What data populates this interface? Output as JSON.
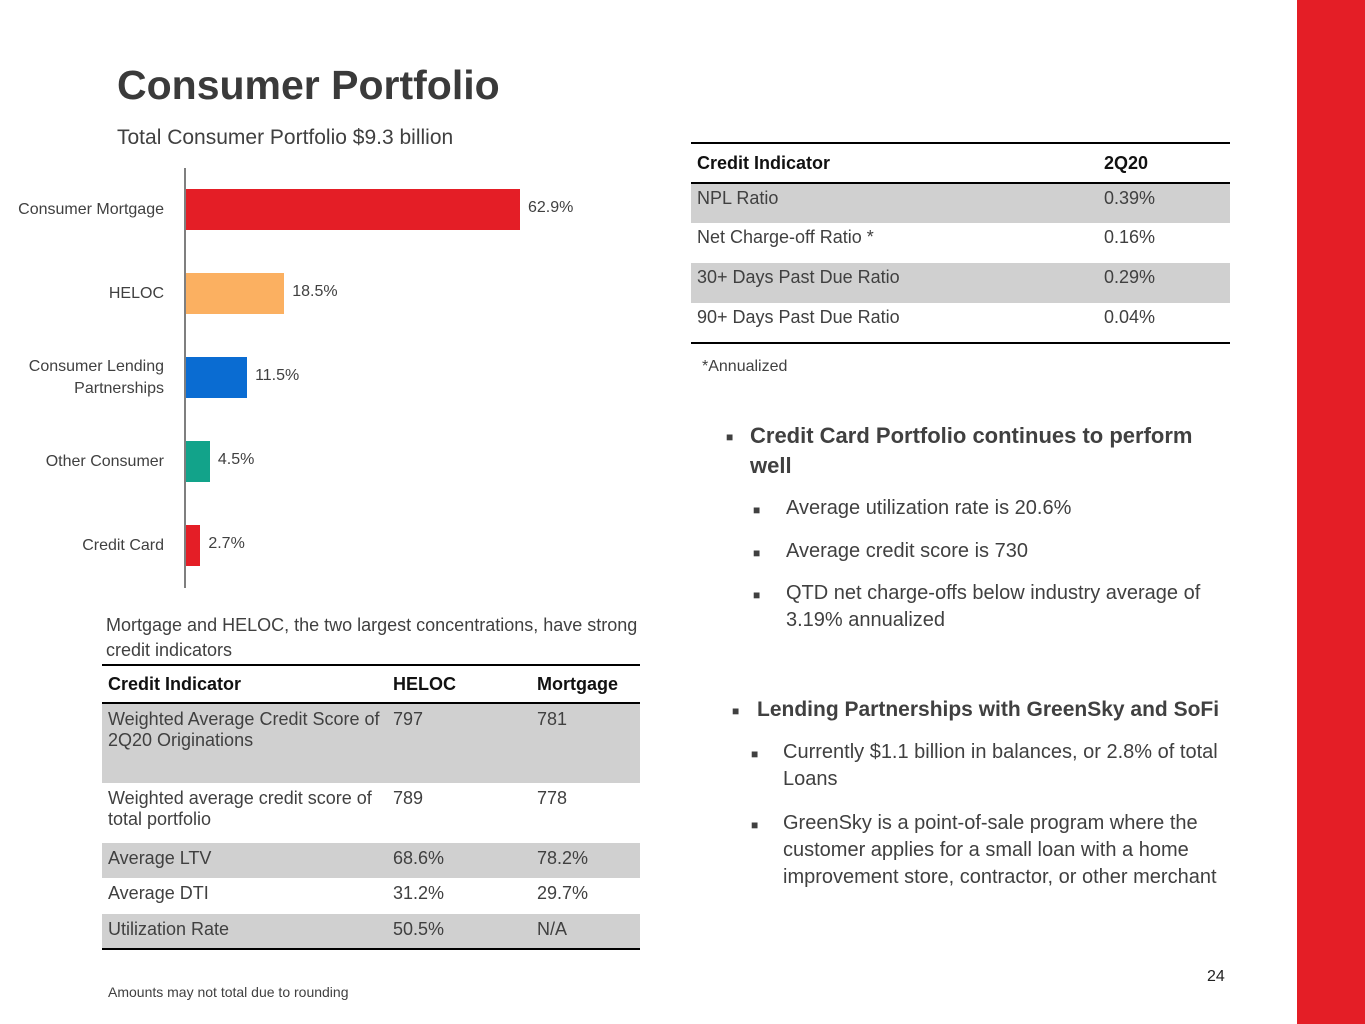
{
  "slide": {
    "title": "Consumer Portfolio",
    "subtitle": "Total Consumer Portfolio $9.3 billion",
    "accent_color": "#e41e26",
    "page_number": "24",
    "footnote": "Amounts may not total due to rounding"
  },
  "chart_data": {
    "type": "bar",
    "orientation": "horizontal",
    "categories": [
      "Consumer Mortgage",
      "HELOC",
      "Consumer Lending Partnerships",
      "Other Consumer",
      "Credit Card"
    ],
    "category_lines": [
      [
        "Consumer Mortgage"
      ],
      [
        "HELOC"
      ],
      [
        "Consumer Lending",
        "Partnerships"
      ],
      [
        "Other Consumer"
      ],
      [
        "Credit Card"
      ]
    ],
    "values": [
      62.9,
      18.5,
      11.5,
      4.5,
      2.7
    ],
    "value_labels": [
      "62.9%",
      "18.5%",
      "11.5%",
      "4.5%",
      "2.7%"
    ],
    "colors": [
      "#e41e26",
      "#fbb061",
      "#0a6cd2",
      "#12a38a",
      "#e41e26"
    ],
    "xlim": [
      0,
      65
    ],
    "grid": false,
    "legend": "none"
  },
  "credit_table": {
    "headers": [
      "Credit Indicator",
      "2Q20"
    ],
    "rows": [
      [
        "NPL Ratio",
        "0.39%"
      ],
      [
        "Net Charge-off Ratio *",
        "0.16%"
      ],
      [
        "30+ Days Past Due Ratio",
        "0.29%"
      ],
      [
        "90+ Days Past Due Ratio",
        "0.04%"
      ]
    ],
    "shaded_rows": [
      0,
      2
    ],
    "note": "*Annualized"
  },
  "credit_card_section": {
    "heading": "Credit Card Portfolio continues to perform well",
    "bullets": [
      "Average utilization rate is 20.6%",
      "Average credit score is 730",
      "QTD net charge-offs below industry average of 3.19% annualized"
    ]
  },
  "lending_section": {
    "heading": "Lending Partnerships with GreenSky and SoFi",
    "bullets": [
      "Currently $1.1 billion in balances, or 2.8% of total Loans",
      "GreenSky is a point-of-sale program where the customer applies for a small loan with a home improvement store, contractor, or other merchant"
    ]
  },
  "mortgage_section": {
    "note": "Mortgage and HELOC, the two largest concentrations, have strong credit indicators",
    "headers": [
      "Credit Indicator",
      "HELOC",
      "Mortgage"
    ],
    "rows": [
      [
        "Weighted Average Credit Score of 2Q20 Originations",
        "797",
        "781"
      ],
      [
        "Weighted average credit score of total portfolio",
        "789",
        "778"
      ],
      [
        "Average LTV",
        "68.6%",
        "78.2%"
      ],
      [
        "Average DTI",
        "31.2%",
        "29.7%"
      ],
      [
        "Utilization Rate",
        "50.5%",
        "N/A"
      ]
    ],
    "shaded_rows": [
      0,
      2,
      4
    ]
  }
}
